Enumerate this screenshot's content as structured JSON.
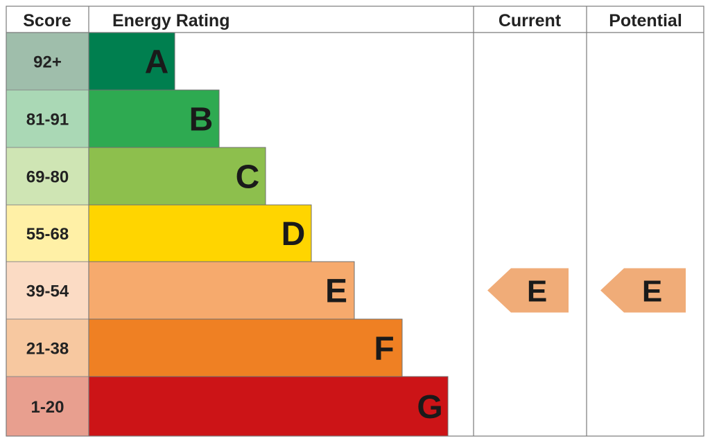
{
  "chart_data": {
    "type": "table",
    "headers": {
      "score": "Score",
      "rating": "Energy Rating",
      "current": "Current",
      "potential": "Potential"
    },
    "bands": [
      {
        "score": "92+",
        "letter": "A",
        "bar_color": "#007f4f",
        "score_color": "#9fbeab"
      },
      {
        "score": "81-91",
        "letter": "B",
        "bar_color": "#2eaa51",
        "score_color": "#aad8b5"
      },
      {
        "score": "69-80",
        "letter": "C",
        "bar_color": "#8dbf4d",
        "score_color": "#cfe5b4"
      },
      {
        "score": "55-68",
        "letter": "D",
        "bar_color": "#ffd500",
        "score_color": "#fff0a6"
      },
      {
        "score": "39-54",
        "letter": "E",
        "bar_color": "#f6aa6d",
        "score_color": "#fbdbc4"
      },
      {
        "score": "21-38",
        "letter": "F",
        "bar_color": "#ef8023",
        "score_color": "#f7c8a0"
      },
      {
        "score": "1-20",
        "letter": "G",
        "bar_color": "#cc1417",
        "score_color": "#e89f8f"
      }
    ],
    "current": {
      "letter": "E",
      "color": "#f0ac78"
    },
    "potential": {
      "letter": "E",
      "color": "#f0ac78"
    }
  }
}
